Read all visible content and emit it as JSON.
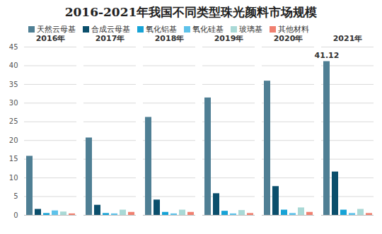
{
  "chart_data": {
    "type": "bar",
    "title": "2016-2021年我国不同类型珠光颜料市场规模",
    "categories": [
      "2016年",
      "2017年",
      "2018年",
      "2019年",
      "2020年",
      "2021年"
    ],
    "series": [
      {
        "name": "天然云母基",
        "color": "#4f7f94",
        "values": [
          15.8,
          20.7,
          26.2,
          31.4,
          35.9,
          41.12
        ]
      },
      {
        "name": "合成云母基",
        "color": "#0b4f6c",
        "values": [
          1.6,
          2.7,
          4.1,
          5.8,
          7.7,
          11.6
        ]
      },
      {
        "name": "氧化铝基",
        "color": "#17a3d6",
        "values": [
          0.5,
          0.5,
          0.8,
          1.1,
          1.4,
          1.4
        ]
      },
      {
        "name": "氧化硅基",
        "color": "#5ec2ea",
        "values": [
          1.2,
          0.4,
          0.4,
          0.4,
          0.5,
          0.5
        ]
      },
      {
        "name": "玻璃基",
        "color": "#a9d9d6",
        "values": [
          0.9,
          1.4,
          1.4,
          1.3,
          2.0,
          1.6
        ]
      },
      {
        "name": "其他材料",
        "color": "#f08070",
        "values": [
          0.4,
          0.8,
          0.8,
          0.5,
          0.8,
          0.5
        ]
      }
    ],
    "annotations": [
      {
        "category": "2021年",
        "series": "天然云母基",
        "y": 41.12,
        "text": "41.12"
      }
    ],
    "ylim": [
      0,
      45
    ],
    "yticks": [
      0,
      5,
      10,
      15,
      20,
      25,
      30,
      35,
      40,
      45
    ],
    "grid": true,
    "legend": "top"
  }
}
